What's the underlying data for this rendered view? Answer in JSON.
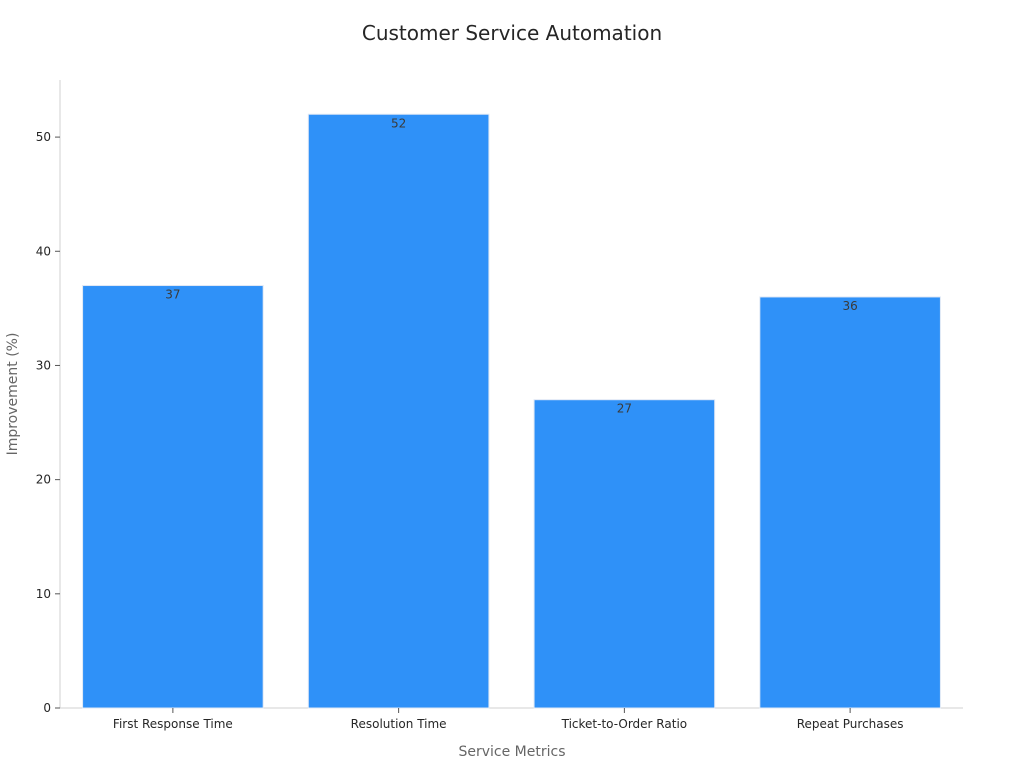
{
  "chart_data": {
    "type": "bar",
    "title": "Customer Service Automation",
    "xlabel": "Service Metrics",
    "ylabel": "Improvement (%)",
    "categories": [
      "First Response Time",
      "Resolution Time",
      "Ticket-to-Order Ratio",
      "Repeat Purchases"
    ],
    "values": [
      37,
      52,
      27,
      36
    ],
    "ylim": [
      0,
      55
    ],
    "yticks": [
      0,
      10,
      20,
      30,
      40,
      50
    ],
    "grid": false,
    "legend": "none",
    "bar_color": "#2f91f8",
    "bar_edge_color": "#dfe8f5"
  }
}
